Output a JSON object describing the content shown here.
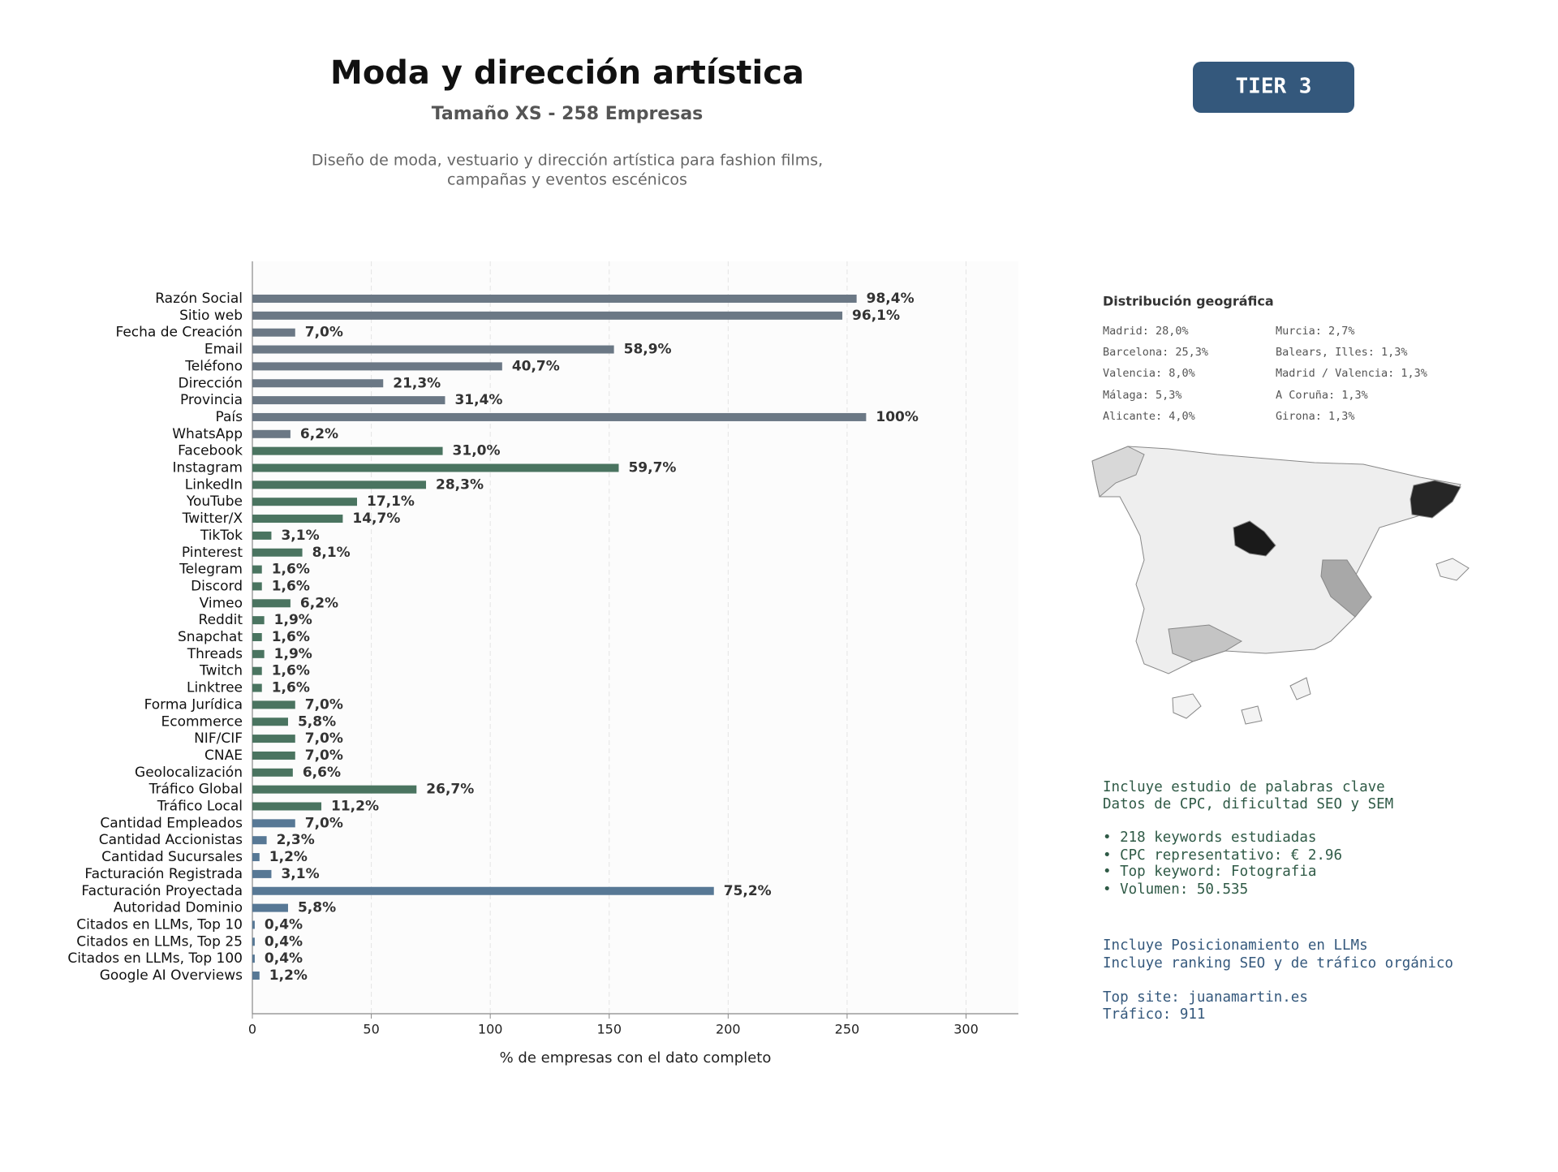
{
  "header": {
    "title": "Moda y dirección artística",
    "subtitle": "Tamaño XS - 258 Empresas",
    "description": [
      "Diseño de moda, vestuario y dirección artística para fashion films,",
      "campañas y eventos escénicos"
    ],
    "tier": "TIER 3"
  },
  "chart_data": {
    "type": "bar",
    "orientation": "horizontal",
    "xlabel": "% de empresas con el dato completo",
    "categories": [
      "Razón Social",
      "Sitio web",
      "Fecha de Creación",
      "Email",
      "Teléfono",
      "Dirección",
      "Provincia",
      "País",
      "WhatsApp",
      "Facebook",
      "Instagram",
      "LinkedIn",
      "YouTube",
      "Twitter/X",
      "TikTok",
      "Pinterest",
      "Telegram",
      "Discord",
      "Vimeo",
      "Reddit",
      "Snapchat",
      "Threads",
      "Twitch",
      "Linktree",
      "Forma Jurídica",
      "Ecommerce",
      "NIF/CIF",
      "CNAE",
      "Geolocalización",
      "Tráfico Global",
      "Tráfico Local",
      "Cantidad Empleados",
      "Cantidad Accionistas",
      "Cantidad Sucursales",
      "Facturación Registrada",
      "Facturación Proyectada",
      "Autoridad Dominio",
      "Citados en LLMs, Top 10",
      "Citados en LLMs, Top 25",
      "Citados en LLMs, Top 100",
      "Google AI Overviews"
    ],
    "values": [
      254,
      248,
      18,
      152,
      105,
      55,
      81,
      258,
      16,
      80,
      154,
      73,
      44,
      38,
      8,
      21,
      4,
      4,
      16,
      5,
      4,
      5,
      4,
      4,
      18,
      15,
      18,
      18,
      17,
      69,
      29,
      18,
      6,
      3,
      8,
      194,
      15,
      1,
      1,
      1,
      3
    ],
    "value_labels": [
      "98,4%",
      "96,1%",
      "7,0%",
      "58,9%",
      "40,7%",
      "21,3%",
      "31,4%",
      "100%",
      "6,2%",
      "31,0%",
      "59,7%",
      "28,3%",
      "17,1%",
      "14,7%",
      "3,1%",
      "8,1%",
      "1,6%",
      "1,6%",
      "6,2%",
      "1,9%",
      "1,6%",
      "1,9%",
      "1,6%",
      "1,6%",
      "7,0%",
      "5,8%",
      "7,0%",
      "7,0%",
      "6,6%",
      "26,7%",
      "11,2%",
      "7,0%",
      "2,3%",
      "1,2%",
      "3,1%",
      "75,2%",
      "5,8%",
      "0,4%",
      "0,4%",
      "0,4%",
      "1,2%"
    ],
    "colors": [
      "#6b7885",
      "#6b7885",
      "#6b7885",
      "#6b7885",
      "#6b7885",
      "#6b7885",
      "#6b7885",
      "#6b7885",
      "#6b7885",
      "#4a7460",
      "#4a7460",
      "#4a7460",
      "#4a7460",
      "#4a7460",
      "#4a7460",
      "#4a7460",
      "#4a7460",
      "#4a7460",
      "#4a7460",
      "#4a7460",
      "#4a7460",
      "#4a7460",
      "#4a7460",
      "#4a7460",
      "#4a7460",
      "#4a7460",
      "#4a7460",
      "#4a7460",
      "#4a7460",
      "#4a7460",
      "#4a7460",
      "#577895",
      "#577895",
      "#577895",
      "#577895",
      "#577895",
      "#577895",
      "#577895",
      "#577895",
      "#577895",
      "#577895"
    ],
    "xlim": [
      0,
      322
    ],
    "xticks": [
      0,
      50,
      100,
      150,
      200,
      250,
      300
    ],
    "grid": true
  },
  "geo": {
    "title": "Distribución geográfica",
    "items": [
      "Madrid: 28,0%",
      "Barcelona: 25,3%",
      "Valencia: 8,0%",
      "Málaga: 5,3%",
      "Alicante: 4,0%",
      "Murcia: 2,7%",
      "Balears, Illes: 1,3%",
      "Madrid / Valencia: 1,3%",
      "A Coruña: 1,3%",
      "Girona: 1,3%"
    ]
  },
  "keywords": [
    "Incluye estudio de palabras clave",
    "Datos de CPC, dificultad SEO y SEM",
    "• 218 keywords estudiadas",
    "• CPC representativo: € 2.96",
    "• Top keyword: Fotografia",
    "• Volumen: 50.535"
  ],
  "llm": [
    "Incluye Posicionamiento en LLMs",
    "Incluye ranking SEO y de tráfico orgánico",
    "Top site: juanamartin.es",
    "Tráfico: 911"
  ]
}
